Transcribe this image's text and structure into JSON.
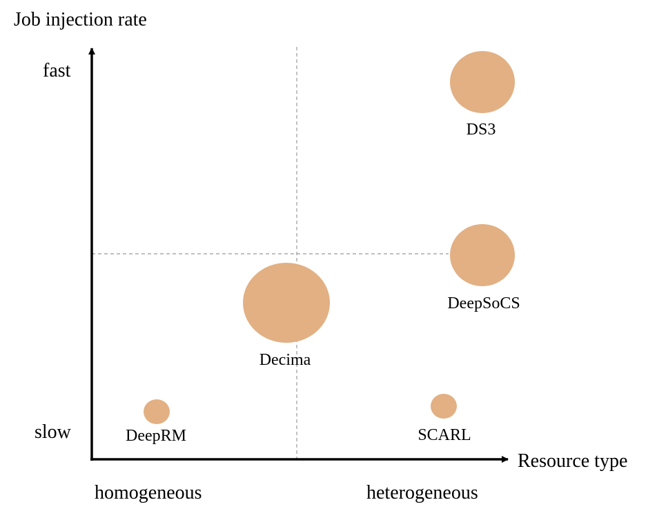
{
  "axes": {
    "y_title": "Job injection rate",
    "x_title": "Resource type",
    "y_tick_high": "fast",
    "y_tick_low": "slow",
    "x_tick_left": "homogeneous",
    "x_tick_right": "heterogeneous"
  },
  "bubbles": [
    {
      "name": "deeprm",
      "label": "DeepRM"
    },
    {
      "name": "decima",
      "label": "Decima"
    },
    {
      "name": "scarl",
      "label": "SCARL"
    },
    {
      "name": "deepsocs",
      "label": "DeepSoCS"
    },
    {
      "name": "ds3",
      "label": "DS3"
    }
  ],
  "colors": {
    "bubble": "#e2b083",
    "axis": "#000000",
    "divider": "#999999"
  }
}
